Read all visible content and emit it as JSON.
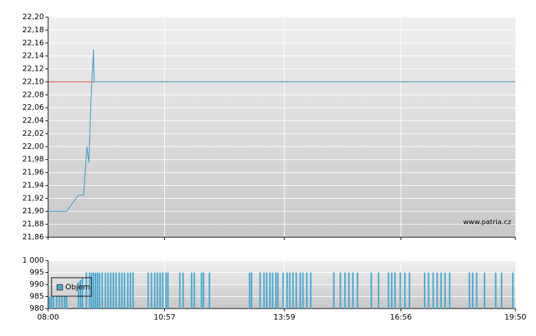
{
  "chart_data": [
    {
      "type": "line",
      "watermark": "www.patria.cz",
      "x": [
        "08:00",
        "08:28",
        "08:46",
        "08:54",
        "08:59",
        "09:02",
        "09:05",
        "09:09",
        "09:10",
        "19:50"
      ],
      "values": [
        21.9,
        21.9,
        21.925,
        21.925,
        22.0,
        21.975,
        22.07,
        22.15,
        22.1,
        22.1
      ],
      "color": "#4aa3c8",
      "reference_line": 22.1,
      "reference_color": "#e03a2e",
      "xlim": [
        "08:00",
        "19:50"
      ],
      "ylim": [
        21.86,
        22.2
      ],
      "yticks": [
        {
          "value": 21.86,
          "label": "21,86"
        },
        {
          "value": 21.88,
          "label": "21,88"
        },
        {
          "value": 21.9,
          "label": "21,90"
        },
        {
          "value": 21.92,
          "label": "21,92"
        },
        {
          "value": 21.94,
          "label": "21,94"
        },
        {
          "value": 21.96,
          "label": "21,96"
        },
        {
          "value": 21.98,
          "label": "21,98"
        },
        {
          "value": 22.0,
          "label": "22,00"
        },
        {
          "value": 22.02,
          "label": "22,02"
        },
        {
          "value": 22.04,
          "label": "22,04"
        },
        {
          "value": 22.06,
          "label": "22,06"
        },
        {
          "value": 22.08,
          "label": "22,08"
        },
        {
          "value": 22.1,
          "label": "22,10"
        },
        {
          "value": 22.12,
          "label": "22,12"
        },
        {
          "value": 22.14,
          "label": "22,14"
        },
        {
          "value": 22.16,
          "label": "22,16"
        },
        {
          "value": 22.18,
          "label": "22,18"
        },
        {
          "value": 22.2,
          "label": "22,20"
        }
      ],
      "grid": true
    },
    {
      "type": "bar",
      "legend": "left",
      "x": [
        "08:02",
        "08:05",
        "08:08",
        "08:13",
        "08:17",
        "08:21",
        "08:25",
        "08:28",
        "08:46",
        "08:49",
        "08:52",
        "08:58",
        "09:03",
        "09:06",
        "09:09",
        "09:12",
        "09:15",
        "09:18",
        "09:22",
        "09:27",
        "09:31",
        "09:35",
        "09:39",
        "09:43",
        "09:48",
        "09:52",
        "09:56",
        "10:01",
        "10:05",
        "10:09",
        "10:32",
        "10:37",
        "10:42",
        "10:46",
        "10:50",
        "10:54",
        "10:59",
        "11:02",
        "11:20",
        "11:25",
        "11:38",
        "11:42",
        "11:53",
        "11:56",
        "12:05",
        "13:06",
        "13:09",
        "13:22",
        "13:28",
        "13:32",
        "13:37",
        "13:41",
        "13:46",
        "13:49",
        "13:57",
        "14:03",
        "14:07",
        "14:12",
        "14:17",
        "14:23",
        "14:27",
        "14:33",
        "14:39",
        "15:14",
        "15:24",
        "15:31",
        "15:37",
        "15:43",
        "15:50",
        "16:11",
        "16:22",
        "16:37",
        "16:42",
        "16:47",
        "16:55",
        "17:02",
        "17:09",
        "17:32",
        "17:38",
        "17:45",
        "17:51",
        "17:57",
        "18:03",
        "18:10",
        "18:40",
        "18:45",
        "18:51",
        "19:03",
        "19:20",
        "19:29",
        "19:46"
      ],
      "series": [
        {
          "name": "Objem",
          "color": "#4aa8d0",
          "values": [
            985,
            985,
            985,
            985,
            985,
            985,
            985,
            985,
            991,
            992,
            993,
            995,
            995,
            995,
            995,
            995,
            995,
            995,
            995,
            995,
            995,
            995,
            995,
            995,
            995,
            995,
            995,
            995,
            995,
            995,
            995,
            995,
            995,
            995,
            995,
            995,
            995,
            995,
            995,
            995,
            995,
            995,
            995,
            995,
            995,
            995,
            995,
            995,
            995,
            995,
            995,
            995,
            995,
            995,
            995,
            995,
            995,
            995,
            995,
            995,
            995,
            995,
            995,
            995,
            995,
            995,
            995,
            995,
            995,
            995,
            995,
            995,
            995,
            995,
            995,
            995,
            995,
            995,
            995,
            995,
            995,
            995,
            995,
            995,
            995,
            995,
            995,
            995,
            995,
            995,
            995
          ]
        }
      ],
      "xlim": [
        "08:00",
        "19:50"
      ],
      "xticks": [
        "08:00",
        "10:57",
        "13:59",
        "16:56",
        "19:50"
      ],
      "ylim": [
        980,
        1000
      ],
      "yticks": [
        {
          "value": 1000,
          "label": "1 000"
        },
        995,
        990,
        985,
        980
      ],
      "grid": true
    }
  ]
}
